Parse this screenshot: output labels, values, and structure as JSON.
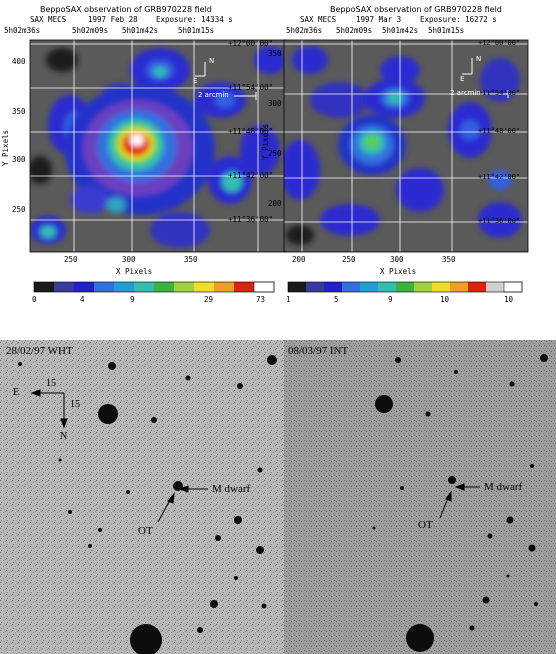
{
  "xray": {
    "left": {
      "title": "BeppoSAX observation of GRB970228 field",
      "instrument": "SAX MECS",
      "date": "1997 Feb 28",
      "exposure": "Exposure: 14334 s",
      "ra_ticks": [
        "5h02m36s",
        "5h02m09s",
        "5h01m42s",
        "5h01m15s"
      ],
      "dec_ticks": [
        "+12°00'00\"",
        "+11°54'00\"",
        "+11°48'00\"",
        "+11°42'00\"",
        "+11°36'00\""
      ],
      "y_ticks": [
        "400",
        "350",
        "300",
        "250"
      ],
      "x_ticks": [
        "250",
        "300",
        "350"
      ],
      "xlabel": "X Pixels",
      "ylabel": "Y Pixels",
      "compass_n": "N",
      "compass_e": "E",
      "scale": "2 arcmin",
      "colorbar_ticks": [
        "0",
        "4",
        "9",
        "29",
        "73"
      ]
    },
    "right": {
      "title": "BeppoSAX observation of GRB970228 field",
      "instrument": "SAX MECS",
      "date": "1997 Mar 3",
      "exposure": "Exposure: 16272 s",
      "ra_ticks": [
        "5h02m36s",
        "5h02m09s",
        "5h01m42s",
        "5h01m15s"
      ],
      "dec_ticks": [
        "+12°00'00\"",
        "+11°54'00\"",
        "+11°48'00\"",
        "+11°42'00\"",
        "+11°36'00\""
      ],
      "y_ticks": [
        "350",
        "300",
        "250",
        "200"
      ],
      "x_ticks": [
        "200",
        "250",
        "300",
        "350"
      ],
      "xlabel": "X Pixels",
      "ylabel": "Y Pixels",
      "compass_n": "N",
      "compass_e": "E",
      "scale": "2 arcmin",
      "colorbar_ticks": [
        "1",
        "5",
        "9",
        "10",
        "10"
      ]
    }
  },
  "optical": {
    "left": {
      "label": "28/02/97 WHT",
      "compass_e": "E",
      "compass_n": "N",
      "scale_x": "15",
      "scale_y": "15",
      "mdwarf": "M dwarf",
      "ot": "OT"
    },
    "right": {
      "label": "08/03/97 INT",
      "mdwarf": "M dwarf",
      "ot": "OT"
    }
  },
  "colors": {
    "background": "#555555",
    "contour_blue": "#1a2ad0",
    "contour_purple": "#6a3ab8",
    "hot_red": "#e02010",
    "hot_yellow": "#f0e020",
    "cyan": "#30c0b0",
    "green": "#40b040"
  }
}
